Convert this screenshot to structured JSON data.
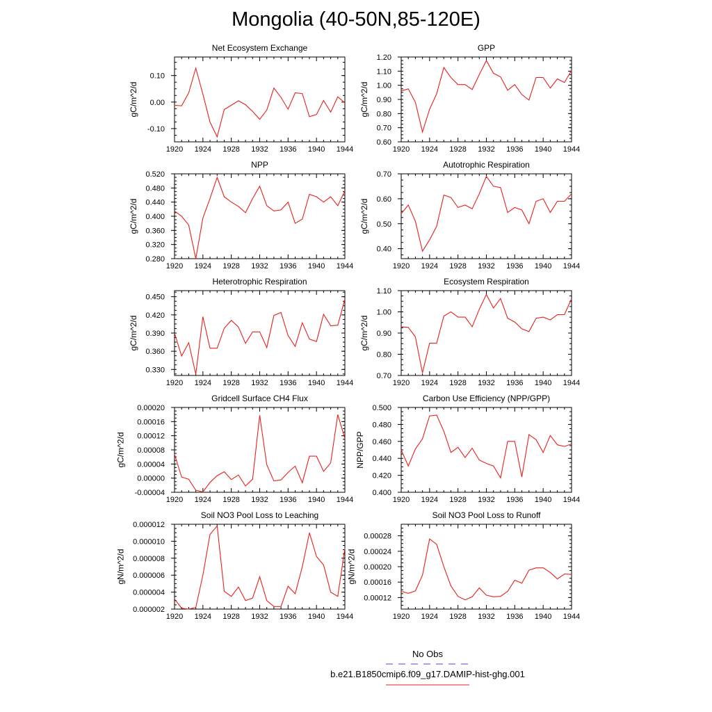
{
  "title": "Mongolia (40-50N,85-120E)",
  "legend": {
    "obs_label": "No Obs",
    "obs_color": "#4a4ae0",
    "model_label": "b.e21.B1850cmip6.f09_g17.DAMIP-hist-ghg.001",
    "model_color": "#e8201c"
  },
  "chart_data": [
    {
      "type": "line",
      "title": "Net Ecosystem Exchange",
      "ylabel": "gC/m^2/d",
      "xlim": [
        1920,
        1944
      ],
      "ylim": [
        -0.15,
        0.17
      ],
      "xticks": [
        1920,
        1924,
        1928,
        1932,
        1936,
        1940,
        1944
      ],
      "xticklabels": [
        "1920",
        "1924",
        "1928",
        "1932",
        "1936",
        "1940",
        "1944"
      ],
      "yticks": [
        -0.1,
        0.0,
        0.1
      ],
      "yticklabels": [
        "-0.10",
        "0.00",
        "0.10"
      ],
      "series": [
        {
          "x": [
            1920,
            1921,
            1922,
            1923,
            1924,
            1925,
            1926,
            1927,
            1928,
            1929,
            1930,
            1931,
            1932,
            1933,
            1934,
            1935,
            1936,
            1937,
            1938,
            1939,
            1940,
            1941,
            1942,
            1943,
            1944
          ],
          "values": [
            -0.012,
            -0.014,
            0.035,
            0.128,
            0.03,
            -0.075,
            -0.131,
            -0.028,
            -0.012,
            0.005,
            -0.01,
            -0.035,
            -0.065,
            -0.03,
            0.053,
            0.018,
            -0.027,
            0.035,
            0.032,
            -0.055,
            -0.047,
            0.006,
            -0.038,
            0.02,
            -0.003
          ]
        }
      ]
    },
    {
      "type": "line",
      "title": "GPP",
      "ylabel": "gC/m^2/d",
      "xlim": [
        1920,
        1944
      ],
      "ylim": [
        0.6,
        1.2
      ],
      "xticks": [
        1920,
        1924,
        1928,
        1932,
        1936,
        1940,
        1944
      ],
      "xticklabels": [
        "1920",
        "1924",
        "1928",
        "1932",
        "1936",
        "1940",
        "1944"
      ],
      "yticks": [
        0.6,
        0.7,
        0.8,
        0.9,
        1.0,
        1.1,
        1.2
      ],
      "yticklabels": [
        "0.60",
        "0.70",
        "0.80",
        "0.90",
        "1.00",
        "1.10",
        "1.20"
      ],
      "series": [
        {
          "x": [
            1920,
            1921,
            1922,
            1923,
            1924,
            1925,
            1926,
            1927,
            1928,
            1929,
            1930,
            1931,
            1932,
            1933,
            1934,
            1935,
            1936,
            1937,
            1938,
            1939,
            1940,
            1941,
            1942,
            1943,
            1944
          ],
          "values": [
            0.96,
            0.975,
            0.88,
            0.67,
            0.83,
            0.94,
            1.125,
            1.055,
            1.005,
            1.005,
            0.97,
            1.075,
            1.175,
            1.085,
            1.06,
            0.965,
            1.005,
            0.935,
            0.895,
            1.055,
            1.055,
            0.98,
            1.045,
            1.02,
            1.105
          ]
        }
      ]
    },
    {
      "type": "line",
      "title": "NPP",
      "ylabel": "gC/m^2/d",
      "xlim": [
        1920,
        1944
      ],
      "ylim": [
        0.28,
        0.52
      ],
      "xticks": [
        1920,
        1924,
        1928,
        1932,
        1936,
        1940,
        1944
      ],
      "xticklabels": [
        "1920",
        "1924",
        "1928",
        "1932",
        "1936",
        "1940",
        "1944"
      ],
      "yticks": [
        0.28,
        0.32,
        0.36,
        0.4,
        0.44,
        0.48,
        0.52
      ],
      "yticklabels": [
        "0.280",
        "0.320",
        "0.360",
        "0.400",
        "0.440",
        "0.480",
        "0.520"
      ],
      "series": [
        {
          "x": [
            1920,
            1921,
            1922,
            1923,
            1924,
            1925,
            1926,
            1927,
            1928,
            1929,
            1930,
            1931,
            1932,
            1933,
            1934,
            1935,
            1936,
            1937,
            1938,
            1939,
            1940,
            1941,
            1942,
            1943,
            1944
          ],
          "values": [
            0.415,
            0.4,
            0.375,
            0.28,
            0.395,
            0.45,
            0.51,
            0.455,
            0.44,
            0.428,
            0.41,
            0.45,
            0.485,
            0.43,
            0.415,
            0.418,
            0.44,
            0.38,
            0.392,
            0.462,
            0.455,
            0.44,
            0.455,
            0.43,
            0.472
          ]
        }
      ]
    },
    {
      "type": "line",
      "title": "Autotrophic Respiration",
      "ylabel": "gC/m^2/d",
      "xlim": [
        1920,
        1944
      ],
      "ylim": [
        0.36,
        0.7
      ],
      "xticks": [
        1920,
        1924,
        1928,
        1932,
        1936,
        1940,
        1944
      ],
      "xticklabels": [
        "1920",
        "1924",
        "1928",
        "1932",
        "1936",
        "1940",
        "1944"
      ],
      "yticks": [
        0.4,
        0.5,
        0.6,
        0.7
      ],
      "yticklabels": [
        "0.40",
        "0.50",
        "0.60",
        "0.70"
      ],
      "series": [
        {
          "x": [
            1920,
            1921,
            1922,
            1923,
            1924,
            1925,
            1926,
            1927,
            1928,
            1929,
            1930,
            1931,
            1932,
            1933,
            1934,
            1935,
            1936,
            1937,
            1938,
            1939,
            1940,
            1941,
            1942,
            1943,
            1944
          ],
          "values": [
            0.54,
            0.575,
            0.51,
            0.39,
            0.435,
            0.49,
            0.615,
            0.605,
            0.565,
            0.575,
            0.56,
            0.62,
            0.69,
            0.65,
            0.645,
            0.545,
            0.565,
            0.555,
            0.5,
            0.59,
            0.6,
            0.545,
            0.59,
            0.59,
            0.62
          ]
        }
      ]
    },
    {
      "type": "line",
      "title": "Heterotrophic Respiration",
      "ylabel": "gC/m^2/d",
      "xlim": [
        1920,
        1944
      ],
      "ylim": [
        0.32,
        0.46
      ],
      "xticks": [
        1920,
        1924,
        1928,
        1932,
        1936,
        1940,
        1944
      ],
      "xticklabels": [
        "1920",
        "1924",
        "1928",
        "1932",
        "1936",
        "1940",
        "1944"
      ],
      "yticks": [
        0.33,
        0.36,
        0.39,
        0.42,
        0.45
      ],
      "yticklabels": [
        "0.330",
        "0.360",
        "0.390",
        "0.420",
        "0.450"
      ],
      "series": [
        {
          "x": [
            1920,
            1921,
            1922,
            1923,
            1924,
            1925,
            1926,
            1927,
            1928,
            1929,
            1930,
            1931,
            1932,
            1933,
            1934,
            1935,
            1936,
            1937,
            1938,
            1939,
            1940,
            1941,
            1942,
            1943,
            1944
          ],
          "values": [
            0.39,
            0.352,
            0.374,
            0.322,
            0.417,
            0.365,
            0.365,
            0.398,
            0.411,
            0.4,
            0.373,
            0.392,
            0.392,
            0.366,
            0.419,
            0.424,
            0.386,
            0.368,
            0.407,
            0.38,
            0.376,
            0.421,
            0.402,
            0.403,
            0.446
          ]
        }
      ]
    },
    {
      "type": "line",
      "title": "Ecosystem Respiration",
      "ylabel": "gC/m^2/d",
      "xlim": [
        1920,
        1944
      ],
      "ylim": [
        0.7,
        1.1
      ],
      "xticks": [
        1920,
        1924,
        1928,
        1932,
        1936,
        1940,
        1944
      ],
      "xticklabels": [
        "1920",
        "1924",
        "1928",
        "1932",
        "1936",
        "1940",
        "1944"
      ],
      "yticks": [
        0.7,
        0.8,
        0.9,
        1.0,
        1.1
      ],
      "yticklabels": [
        "0.70",
        "0.80",
        "0.90",
        "1.00",
        "1.10"
      ],
      "series": [
        {
          "x": [
            1920,
            1921,
            1922,
            1923,
            1924,
            1925,
            1926,
            1927,
            1928,
            1929,
            1930,
            1931,
            1932,
            1933,
            1934,
            1935,
            1936,
            1937,
            1938,
            1939,
            1940,
            1941,
            1942,
            1943,
            1944
          ],
          "values": [
            0.93,
            0.927,
            0.882,
            0.712,
            0.852,
            0.852,
            0.98,
            1.0,
            0.975,
            0.975,
            0.93,
            1.012,
            1.082,
            1.018,
            1.063,
            0.97,
            0.952,
            0.92,
            0.907,
            0.97,
            0.975,
            0.962,
            0.987,
            0.987,
            1.062
          ]
        }
      ]
    },
    {
      "type": "line",
      "title": "Gridcell Surface CH4 Flux",
      "ylabel": "gC/m^2/d",
      "xlim": [
        1920,
        1944
      ],
      "ylim": [
        -4e-05,
        0.0002
      ],
      "xticks": [
        1920,
        1924,
        1928,
        1932,
        1936,
        1940,
        1944
      ],
      "xticklabels": [
        "1920",
        "1924",
        "1928",
        "1932",
        "1936",
        "1940",
        "1944"
      ],
      "yticks": [
        -4e-05,
        0.0,
        4e-05,
        8e-05,
        0.00012,
        0.00016,
        0.0002
      ],
      "yticklabels": [
        "-0.00004",
        "0.00000",
        "0.00004",
        "0.00008",
        "0.00012",
        "0.00016",
        "0.00020"
      ],
      "series": [
        {
          "x": [
            1920,
            1921,
            1922,
            1923,
            1924,
            1925,
            1926,
            1927,
            1928,
            1929,
            1930,
            1931,
            1932,
            1933,
            1934,
            1935,
            1936,
            1937,
            1938,
            1939,
            1940,
            1941,
            1942,
            1943,
            1944
          ],
          "values": [
            6.8e-05,
            3e-06,
            -3e-06,
            -3.4e-05,
            -3.9e-05,
            -1.2e-05,
            7e-06,
            1.8e-05,
            -4e-06,
            9e-06,
            -2.2e-05,
            -3e-06,
            0.000178,
            3.8e-05,
            -8e-06,
            -5e-06,
            1.6e-05,
            3.4e-05,
            -1.3e-05,
            6.2e-05,
            6.2e-05,
            1.9e-05,
            4.3e-05,
            0.00018,
            0.000112
          ]
        }
      ]
    },
    {
      "type": "line",
      "title": "Carbon Use Efficiency (NPP/GPP)",
      "ylabel": "NPP/GPP",
      "xlim": [
        1920,
        1944
      ],
      "ylim": [
        0.4,
        0.5
      ],
      "xticks": [
        1920,
        1924,
        1928,
        1932,
        1936,
        1940,
        1944
      ],
      "xticklabels": [
        "1920",
        "1924",
        "1928",
        "1932",
        "1936",
        "1940",
        "1944"
      ],
      "yticks": [
        0.4,
        0.42,
        0.44,
        0.46,
        0.48,
        0.5
      ],
      "yticklabels": [
        "0.400",
        "0.420",
        "0.440",
        "0.460",
        "0.480",
        "0.500"
      ],
      "series": [
        {
          "x": [
            1920,
            1921,
            1922,
            1923,
            1924,
            1925,
            1926,
            1927,
            1928,
            1929,
            1930,
            1931,
            1932,
            1933,
            1934,
            1935,
            1936,
            1937,
            1938,
            1939,
            1940,
            1941,
            1942,
            1943,
            1944
          ],
          "values": [
            0.45,
            0.431,
            0.451,
            0.463,
            0.49,
            0.491,
            0.472,
            0.447,
            0.453,
            0.441,
            0.452,
            0.438,
            0.434,
            0.431,
            0.417,
            0.46,
            0.46,
            0.418,
            0.468,
            0.462,
            0.447,
            0.467,
            0.456,
            0.454,
            0.457
          ]
        }
      ]
    },
    {
      "type": "line",
      "title": "Soil NO3 Pool Loss to Leaching",
      "ylabel": "gN/m^2/d",
      "xlim": [
        1920,
        1944
      ],
      "ylim": [
        2e-06,
        1.2e-05
      ],
      "xticks": [
        1920,
        1924,
        1928,
        1932,
        1936,
        1940,
        1944
      ],
      "xticklabels": [
        "1920",
        "1924",
        "1928",
        "1932",
        "1936",
        "1940",
        "1944"
      ],
      "yticks": [
        2e-06,
        4e-06,
        6e-06,
        8e-06,
        1e-05,
        1.2e-05
      ],
      "yticklabels": [
        "0.000002",
        "0.000004",
        "0.000006",
        "0.000008",
        "0.000010",
        "0.000012"
      ],
      "series": [
        {
          "x": [
            1920,
            1921,
            1922,
            1923,
            1924,
            1925,
            1926,
            1927,
            1928,
            1929,
            1930,
            1931,
            1932,
            1933,
            1934,
            1935,
            1936,
            1937,
            1938,
            1939,
            1940,
            1941,
            1942,
            1943,
            1944
          ],
          "values": [
            3.2e-06,
            2.1e-06,
            2e-06,
            2.2e-06,
            6e-06,
            1.08e-05,
            1.18e-05,
            4.1e-06,
            3.5e-06,
            4.6e-06,
            3e-06,
            3.3e-06,
            5.8e-06,
            3e-06,
            2.3e-06,
            2.3e-06,
            4.7e-06,
            3.8e-06,
            7e-06,
            1.1e-05,
            8.2e-06,
            7.2e-06,
            4e-06,
            3.5e-06,
            9.2e-06
          ]
        }
      ]
    },
    {
      "type": "line",
      "title": "Soil NO3 Pool Loss to Runoff",
      "ylabel": "gN/m^2/d",
      "xlim": [
        1920,
        1944
      ],
      "ylim": [
        9e-05,
        0.00031
      ],
      "xticks": [
        1920,
        1924,
        1928,
        1932,
        1936,
        1940,
        1944
      ],
      "xticklabels": [
        "1920",
        "1924",
        "1928",
        "1932",
        "1936",
        "1940",
        "1944"
      ],
      "yticks": [
        0.00012,
        0.00016,
        0.0002,
        0.00024,
        0.00028
      ],
      "yticklabels": [
        "0.00012",
        "0.00016",
        "0.00020",
        "0.00024",
        "0.00028"
      ],
      "series": [
        {
          "x": [
            1920,
            1921,
            1922,
            1923,
            1924,
            1925,
            1926,
            1927,
            1928,
            1929,
            1930,
            1931,
            1932,
            1933,
            1934,
            1935,
            1936,
            1937,
            1938,
            1939,
            1940,
            1941,
            1942,
            1943,
            1944
          ],
          "values": [
            0.000136,
            0.000131,
            0.000137,
            0.000178,
            0.000272,
            0.000258,
            0.0002,
            0.00015,
            0.000123,
            0.000114,
            0.000122,
            0.000145,
            0.000126,
            0.000122,
            0.000123,
            0.000136,
            0.000165,
            0.000157,
            0.000191,
            0.000197,
            0.000197,
            0.000185,
            0.000168,
            0.000181,
            0.00018
          ]
        }
      ]
    }
  ]
}
